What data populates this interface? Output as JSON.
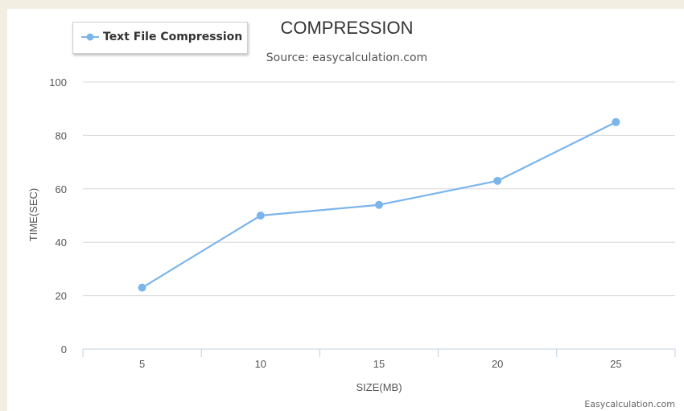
{
  "chart_data": {
    "type": "line",
    "title": "COMPRESSION",
    "subtitle": "Source: easycalculation.com",
    "xlabel": "SIZE(MB)",
    "ylabel": "TIME(SEC)",
    "categories": [
      "5",
      "10",
      "15",
      "20",
      "25"
    ],
    "ylim": [
      0,
      100
    ],
    "yticks": [
      0,
      20,
      40,
      60,
      80,
      100
    ],
    "grid": true,
    "legend": "top-left",
    "series": [
      {
        "name": "Text File Compression",
        "values": [
          23,
          50,
          54,
          63,
          85
        ],
        "color": "#7cb5ec"
      }
    ],
    "credit": "Easycalculation.com"
  }
}
